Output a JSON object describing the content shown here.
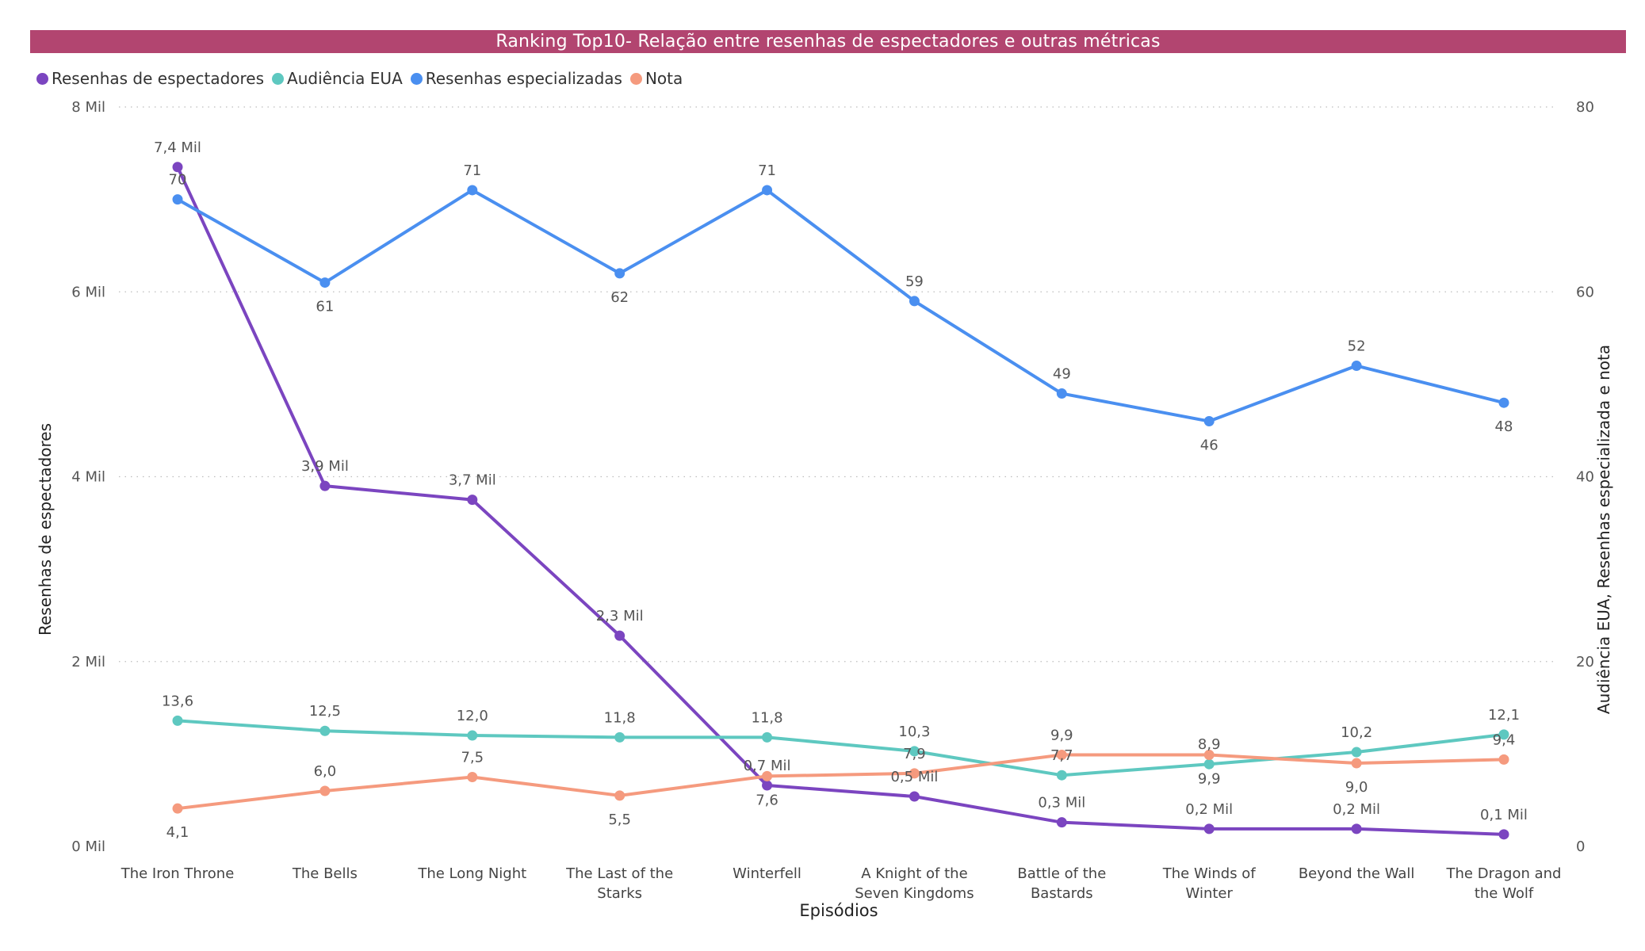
{
  "chart_data": {
    "type": "line",
    "title": "Ranking Top10- Relação entre resenhas de espectadores e outras métricas",
    "xlabel": "Episódios",
    "ylabel_left": "Resenhas de espectadores",
    "ylabel_right": "Audiência EUA, Resenhas especializada e nota",
    "y_left_ticks": [
      "0 Mil",
      "2 Mil",
      "4 Mil",
      "6 Mil",
      "8 Mil"
    ],
    "y_right_ticks": [
      "0",
      "20",
      "40",
      "60",
      "80"
    ],
    "ylim_left": [
      0,
      8000
    ],
    "ylim_right": [
      0,
      80
    ],
    "grid": true,
    "legend_position": "top-left",
    "categories": [
      [
        "The Iron Throne"
      ],
      [
        "The Bells"
      ],
      [
        "The Long Night"
      ],
      [
        "The Last of the",
        "Starks"
      ],
      [
        "Winterfell"
      ],
      [
        "A Knight of the",
        "Seven Kingdoms"
      ],
      [
        "Battle of the",
        "Bastards"
      ],
      [
        "The Winds of",
        "Winter"
      ],
      [
        "Beyond the Wall"
      ],
      [
        "The Dragon and",
        "the Wolf"
      ]
    ],
    "series": [
      {
        "name": "Resenhas de espectadores",
        "axis": "left",
        "color": "#7b45c0",
        "values": [
          7350,
          3900,
          3750,
          2280,
          660,
          540,
          260,
          190,
          190,
          130
        ],
        "labels": [
          "7,4 Mil",
          "3,9 Mil",
          "3,7 Mil",
          "2,3 Mil",
          "0,7 Mil",
          "0,5 Mil",
          "0,3 Mil",
          "0,2 Mil",
          "0,2 Mil",
          "0,1 Mil"
        ],
        "label_pos": [
          "above",
          "above",
          "above",
          "above",
          "above",
          "above",
          "above",
          "above",
          "above",
          "above"
        ]
      },
      {
        "name": "Audiência EUA",
        "axis": "right",
        "color": "#5ec8c0",
        "values": [
          13.6,
          12.5,
          12.0,
          11.8,
          11.8,
          10.3,
          7.7,
          8.9,
          10.2,
          12.1
        ],
        "labels": [
          "13,6",
          "12,5",
          "12,0",
          "11,8",
          "11,8",
          "10,3",
          "7,7",
          "8,9",
          "10,2",
          "12,1"
        ],
        "label_pos": [
          "above",
          "above",
          "above",
          "above",
          "above",
          "above",
          "above",
          "above",
          "above",
          "above"
        ]
      },
      {
        "name": "Resenhas especializadas",
        "axis": "right",
        "color": "#4a8ff0",
        "values": [
          70,
          61,
          71,
          62,
          71,
          59,
          49,
          46,
          52,
          48
        ],
        "labels": [
          "70",
          "61",
          "71",
          "62",
          "71",
          "59",
          "49",
          "46",
          "52",
          "48"
        ],
        "label_pos": [
          "above",
          "below",
          "above",
          "below",
          "above",
          "above",
          "above",
          "below",
          "above",
          "below"
        ]
      },
      {
        "name": "Nota",
        "axis": "right",
        "color": "#f59a7e",
        "values": [
          4.1,
          6.0,
          7.5,
          5.5,
          7.6,
          7.9,
          9.9,
          9.9,
          9.0,
          9.4
        ],
        "labels": [
          "4,1",
          "6,0",
          "7,5",
          "5,5",
          "7,6",
          "7,9",
          "9,9",
          "9,9",
          "9,0",
          "9,4"
        ],
        "label_pos": [
          "below",
          "above",
          "above",
          "below",
          "below",
          "above",
          "above",
          "below",
          "below",
          "above"
        ]
      }
    ]
  }
}
